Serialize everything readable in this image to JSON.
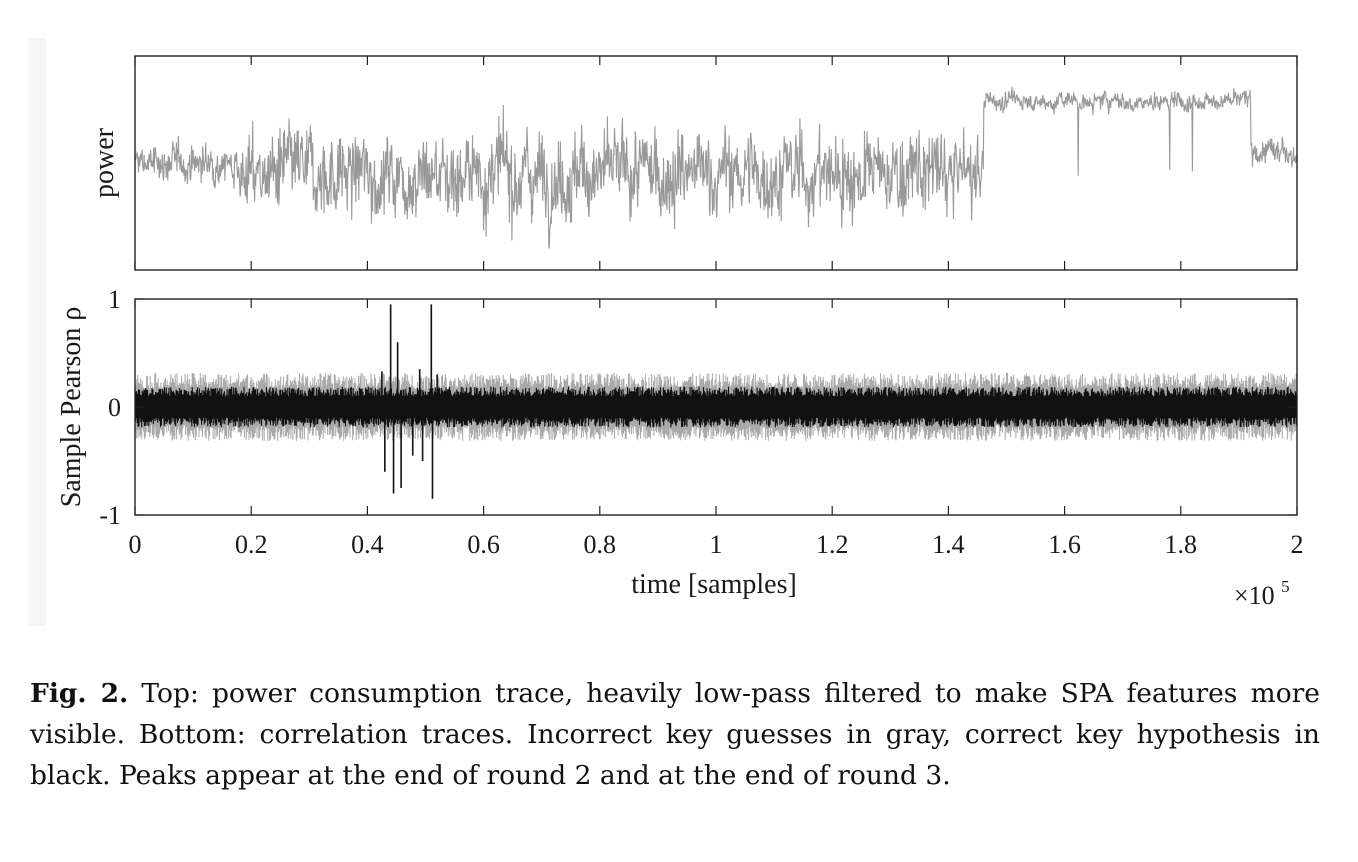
{
  "chart_data": [
    {
      "type": "line",
      "panel": "top",
      "ylabel": "power",
      "xlabel": "",
      "x_range": [
        0,
        200000
      ],
      "x_ticks": [
        0,
        20000,
        40000,
        60000,
        80000,
        100000,
        120000,
        140000,
        160000,
        180000,
        200000
      ],
      "y_ticks_shown": false,
      "series": [
        {
          "color": "#999999",
          "segments": [
            {
              "x_from": 0,
              "x_to": 18000,
              "baseline": 0.5,
              "swing": 0.15
            },
            {
              "x_from": 18000,
              "x_to": 146000,
              "baseline": 0.45,
              "swing": 0.35
            },
            {
              "x_from": 146000,
              "x_to": 192000,
              "baseline": 0.79,
              "swing": 0.08
            },
            {
              "x_from": 192000,
              "x_to": 200000,
              "baseline": 0.55,
              "swing": 0.1
            }
          ]
        }
      ]
    },
    {
      "type": "line",
      "panel": "bottom",
      "ylabel": "Sample Pearson ρ",
      "xlabel": "time [samples]",
      "x_exponent_label": "×10",
      "x_exponent_power": "5",
      "x_range": [
        0,
        200000
      ],
      "y_range": [
        -1,
        1
      ],
      "y_ticks": [
        -1,
        0,
        1
      ],
      "y_tick_labels": [
        "-1",
        "0",
        "1"
      ],
      "x_ticks": [
        0,
        20000,
        40000,
        60000,
        80000,
        100000,
        120000,
        140000,
        160000,
        180000,
        200000
      ],
      "x_tick_labels": [
        "0",
        "0.2",
        "0.4",
        "0.6",
        "0.8",
        "1",
        "1.2",
        "1.4",
        "1.6",
        "1.8",
        "2"
      ],
      "series": [
        {
          "color": "#aaaaaa",
          "envelope": [
            -0.3,
            0.3
          ]
        },
        {
          "color": "#111111",
          "envelope": [
            -0.18,
            0.18
          ],
          "peaks": [
            {
              "x": 42500,
              "y": 0.33
            },
            {
              "x": 43000,
              "y": -0.6
            },
            {
              "x": 44000,
              "y": 0.95
            },
            {
              "x": 44500,
              "y": -0.8
            },
            {
              "x": 45200,
              "y": 0.6
            },
            {
              "x": 45800,
              "y": -0.75
            },
            {
              "x": 47800,
              "y": -0.45
            },
            {
              "x": 49000,
              "y": 0.35
            },
            {
              "x": 49500,
              "y": -0.5
            },
            {
              "x": 51000,
              "y": 0.95
            },
            {
              "x": 51200,
              "y": -0.85
            },
            {
              "x": 52000,
              "y": 0.3
            }
          ]
        }
      ]
    }
  ],
  "caption": {
    "label": "Fig. 2.",
    "text": " Top: power consumption trace, heavily low-pass filtered to make SPA features more visible. Bottom: correlation traces. Incorrect key guesses in gray, correct key hypothesis in black. Peaks appear at the end of round 2 and at the end of round 3."
  }
}
